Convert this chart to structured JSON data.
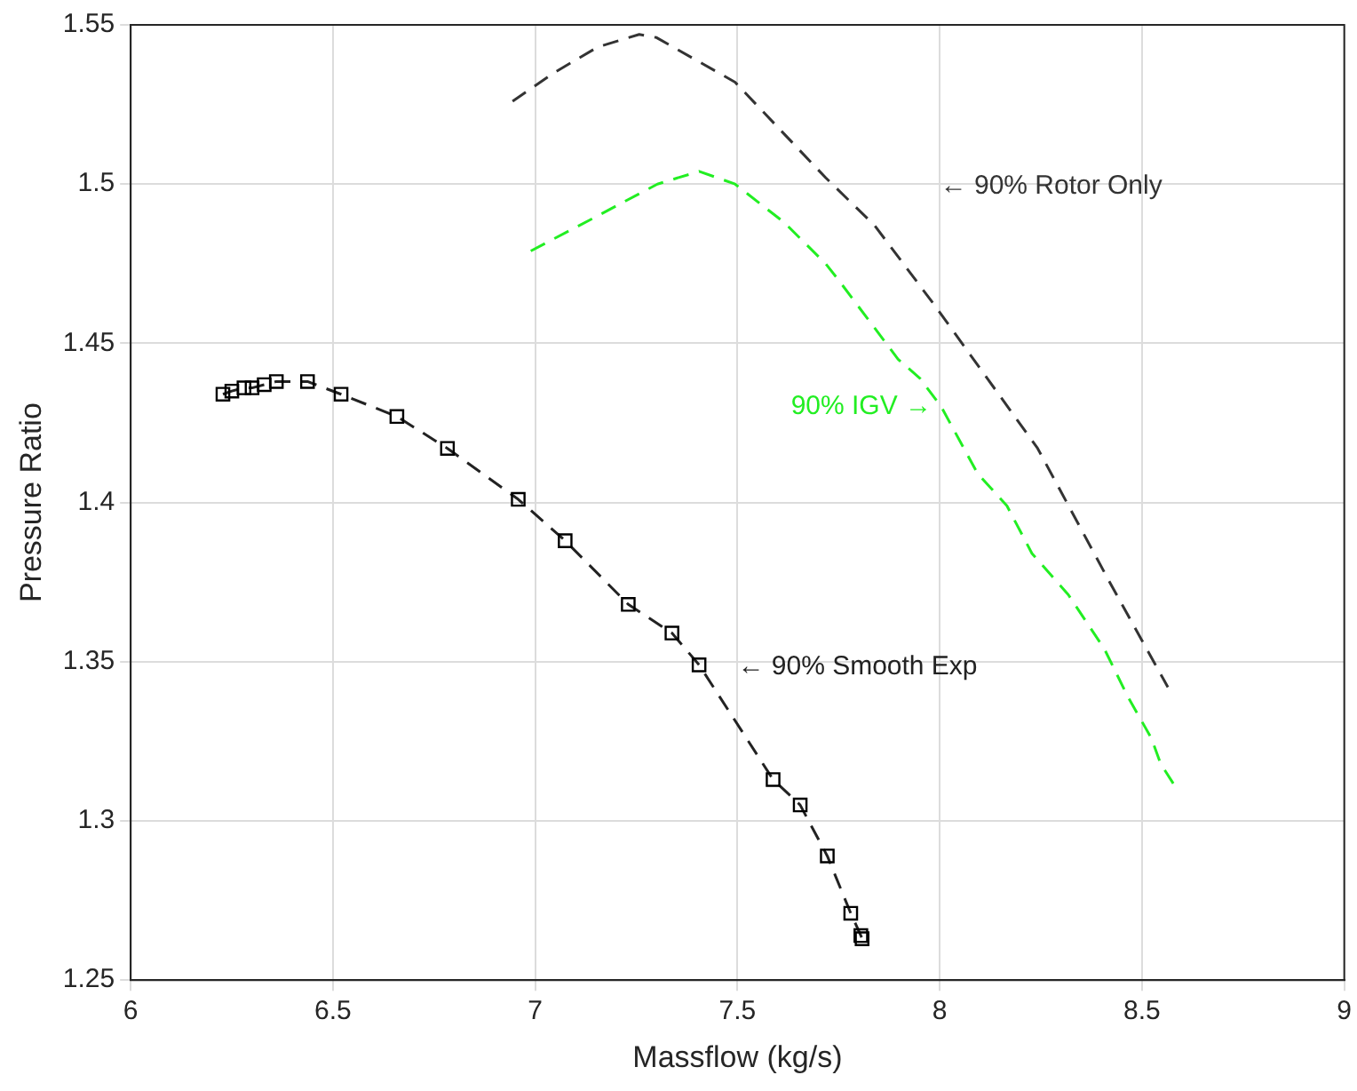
{
  "chart_data": {
    "type": "line",
    "xlabel": "Massflow (kg/s)",
    "ylabel": "Pressure Ratio",
    "xlim": [
      6,
      9
    ],
    "xticks": [
      6,
      6.5,
      7,
      7.5,
      8,
      8.5,
      9
    ],
    "ylim": [
      1.25,
      1.55
    ],
    "yticks": [
      1.25,
      1.3,
      1.35,
      1.4,
      1.45,
      1.5,
      1.55
    ],
    "grid": true,
    "legend": false,
    "series": [
      {
        "color": "#333333",
        "marker": "none",
        "line_style": "dashed",
        "x": [
          6.944,
          7.047,
          7.154,
          7.257,
          7.3,
          7.494,
          7.718,
          7.839,
          7.987,
          8.242,
          8.42,
          8.564
        ],
        "values": [
          1.526,
          1.535,
          1.543,
          1.547,
          1.546,
          1.532,
          1.502,
          1.487,
          1.462,
          1.417,
          1.375,
          1.342
        ]
      },
      {
        "color": "#22ee22",
        "marker": "none",
        "line_style": "dashed",
        "x": [
          6.989,
          7.154,
          7.302,
          7.405,
          7.494,
          7.615,
          7.718,
          7.749,
          7.897,
          7.951,
          8.004,
          8.094,
          8.166,
          8.228,
          8.318,
          8.407,
          8.465,
          8.523,
          8.546,
          8.586
        ],
        "values": [
          1.479,
          1.49,
          1.5,
          1.504,
          1.5,
          1.488,
          1.475,
          1.47,
          1.445,
          1.439,
          1.43,
          1.409,
          1.399,
          1.384,
          1.371,
          1.354,
          1.339,
          1.326,
          1.318,
          1.31
        ]
      },
      {
        "color": "#222222",
        "marker": "square",
        "line_style": "dashed",
        "x": [
          6.228,
          6.25,
          6.28,
          6.3,
          6.33,
          6.36,
          6.437,
          6.52,
          6.658,
          6.783,
          6.958,
          7.074,
          7.23,
          7.338,
          7.405,
          7.588,
          7.655,
          7.722,
          7.78,
          7.805,
          7.808
        ],
        "values": [
          1.434,
          1.435,
          1.436,
          1.436,
          1.437,
          1.438,
          1.438,
          1.434,
          1.427,
          1.417,
          1.401,
          1.388,
          1.368,
          1.359,
          1.349,
          1.313,
          1.305,
          1.289,
          1.271,
          1.264,
          1.263
        ]
      }
    ],
    "annotations": [
      "← 90% Rotor Only",
      "90% IGV →",
      "← 90% Smooth Exp"
    ]
  }
}
